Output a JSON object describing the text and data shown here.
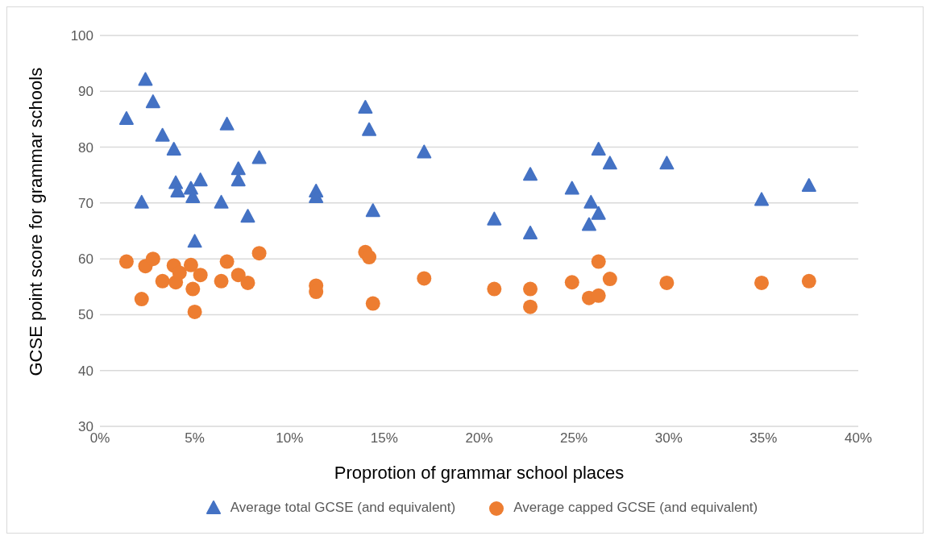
{
  "chart_data": {
    "type": "scatter",
    "xlabel": "Proprotion of grammar school places",
    "ylabel": "GCSE point score for grammar schools",
    "xlim": [
      0,
      40
    ],
    "xticks": [
      {
        "value": 0,
        "label": "0%"
      },
      {
        "value": 5,
        "label": "5%"
      },
      {
        "value": 10,
        "label": "10%"
      },
      {
        "value": 15,
        "label": "15%"
      },
      {
        "value": 20,
        "label": "20%"
      },
      {
        "value": 25,
        "label": "25%"
      },
      {
        "value": 30,
        "label": "30%"
      },
      {
        "value": 35,
        "label": "35%"
      },
      {
        "value": 40,
        "label": "40%"
      }
    ],
    "ylim": [
      30,
      100
    ],
    "yticks": [
      30,
      40,
      50,
      60,
      70,
      80,
      90,
      100
    ],
    "grid": "y",
    "legend": "bottom",
    "series": [
      {
        "name": "Average total GCSE (and equivalent)",
        "color": "#4472c4",
        "marker": "triangle",
        "x": [
          1.4,
          2.2,
          2.4,
          2.8,
          3.3,
          3.9,
          4.0,
          4.1,
          4.8,
          4.9,
          5.0,
          5.3,
          6.4,
          6.7,
          7.3,
          7.3,
          7.8,
          8.4,
          11.4,
          11.4,
          14.0,
          14.2,
          14.4,
          17.1,
          20.8,
          22.7,
          22.7,
          24.9,
          25.9,
          25.8,
          26.3,
          26.3,
          26.9,
          29.9,
          34.9,
          37.4
        ],
        "values": [
          85,
          70,
          92,
          88,
          82,
          79.5,
          73.5,
          72,
          72.5,
          71,
          63,
          74,
          70,
          84,
          76,
          74,
          67.5,
          78,
          72,
          71,
          87,
          83,
          68.5,
          79,
          67,
          75,
          64.5,
          72.5,
          70,
          66,
          79.5,
          68,
          77,
          77,
          70.5,
          73
        ]
      },
      {
        "name": "Average capped GCSE (and equivalent)",
        "color": "#ed7d31",
        "marker": "circle",
        "x": [
          1.4,
          2.2,
          2.4,
          2.8,
          3.3,
          3.9,
          4.0,
          4.2,
          4.8,
          4.9,
          5.0,
          5.3,
          6.4,
          6.7,
          7.3,
          7.8,
          8.4,
          11.4,
          11.4,
          14.0,
          14.2,
          14.4,
          17.1,
          20.8,
          22.7,
          22.7,
          24.9,
          25.8,
          26.3,
          26.3,
          26.9,
          29.9,
          34.9,
          37.4
        ],
        "values": [
          59.5,
          52.8,
          58.7,
          60,
          56,
          58.8,
          55.8,
          57.5,
          58.9,
          54.6,
          50.5,
          57.1,
          56,
          59.5,
          57.1,
          55.7,
          61,
          55.2,
          54.1,
          61.2,
          60.3,
          52,
          56.5,
          54.6,
          54.6,
          51.4,
          55.8,
          53,
          59.5,
          53.4,
          56.4,
          55.7,
          55.7,
          56
        ]
      }
    ]
  }
}
